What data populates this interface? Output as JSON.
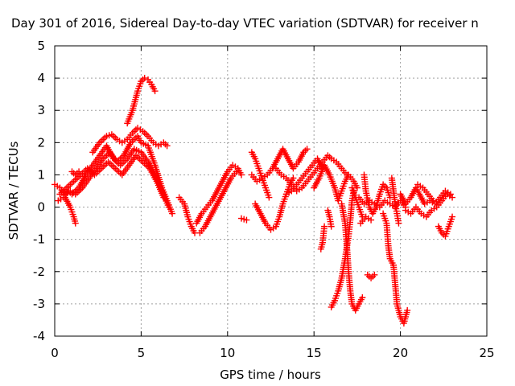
{
  "chart_data": {
    "type": "scatter",
    "title": "Day 301 of 2016, Sidereal Day-to-day VTEC variation (SDTVAR) for receiver n",
    "xlabel": "GPS time / hours",
    "ylabel": "SDTVAR / TECUs",
    "xlim": [
      0,
      25
    ],
    "ylim": [
      -4,
      5
    ],
    "x_ticks": [
      "0",
      "5",
      "10",
      "15",
      "20",
      "25"
    ],
    "y_ticks": [
      "-4",
      "-3",
      "-2",
      "-1",
      "0",
      "1",
      "2",
      "3",
      "4",
      "5"
    ],
    "x_tick_values": [
      0,
      5,
      10,
      15,
      20,
      25
    ],
    "y_tick_values": [
      -4,
      -3,
      -2,
      -1,
      0,
      1,
      2,
      3,
      4,
      5
    ],
    "grid": true,
    "marker": "+",
    "series": [
      {
        "color": "#ff0000",
        "segments": [
          [
            [
              0.0,
              0.7
            ],
            [
              0.3,
              0.6
            ],
            [
              0.6,
              0.4
            ],
            [
              0.9,
              0.5
            ],
            [
              1.2,
              0.4
            ],
            [
              1.6,
              0.6
            ],
            [
              2.0,
              0.9
            ],
            [
              2.4,
              1.2
            ],
            [
              2.8,
              1.5
            ],
            [
              3.2,
              1.7
            ],
            [
              3.6,
              1.4
            ],
            [
              4.0,
              1.6
            ],
            [
              4.4,
              2.0
            ],
            [
              4.8,
              2.2
            ],
            [
              5.0,
              2.0
            ],
            [
              5.4,
              1.9
            ],
            [
              5.8,
              1.3
            ],
            [
              6.2,
              0.6
            ],
            [
              6.5,
              0.2
            ],
            [
              6.8,
              -0.2
            ]
          ],
          [
            [
              0.2,
              0.2
            ],
            [
              0.5,
              0.3
            ],
            [
              0.8,
              0.5
            ],
            [
              1.0,
              0.4
            ],
            [
              1.4,
              0.6
            ],
            [
              1.8,
              1.0
            ],
            [
              2.2,
              1.3
            ],
            [
              2.6,
              1.6
            ],
            [
              3.0,
              1.9
            ],
            [
              3.4,
              1.5
            ],
            [
              3.8,
              1.3
            ],
            [
              4.2,
              1.5
            ],
            [
              4.6,
              1.8
            ],
            [
              5.0,
              1.7
            ],
            [
              5.4,
              1.4
            ],
            [
              5.8,
              1.0
            ],
            [
              6.2,
              0.5
            ],
            [
              6.6,
              0.0
            ]
          ],
          [
            [
              0.3,
              0.4
            ],
            [
              0.7,
              0.6
            ],
            [
              1.1,
              0.8
            ],
            [
              1.5,
              1.0
            ],
            [
              1.9,
              1.2
            ],
            [
              2.3,
              1.0
            ],
            [
              2.7,
              1.2
            ],
            [
              3.1,
              1.4
            ],
            [
              3.5,
              1.2
            ],
            [
              3.9,
              1.0
            ],
            [
              4.3,
              1.3
            ],
            [
              4.7,
              1.6
            ],
            [
              5.1,
              1.4
            ],
            [
              5.5,
              1.2
            ],
            [
              5.9,
              0.8
            ],
            [
              6.3,
              0.3
            ]
          ],
          [
            [
              1.0,
              1.1
            ],
            [
              1.2,
              1.0
            ],
            [
              1.4,
              1.1
            ]
          ],
          [
            [
              0.6,
              0.3
            ],
            [
              0.9,
              0.0
            ],
            [
              1.1,
              -0.3
            ],
            [
              1.2,
              -0.5
            ]
          ],
          [
            [
              4.2,
              2.6
            ],
            [
              4.5,
              3.0
            ],
            [
              4.8,
              3.6
            ],
            [
              5.0,
              3.9
            ],
            [
              5.2,
              4.0
            ],
            [
              5.4,
              3.95
            ],
            [
              5.6,
              3.8
            ],
            [
              5.8,
              3.6
            ]
          ],
          [
            [
              2.2,
              1.7
            ],
            [
              2.6,
              2.0
            ],
            [
              3.0,
              2.2
            ],
            [
              3.3,
              2.25
            ],
            [
              3.6,
              2.1
            ],
            [
              3.9,
              2.0
            ],
            [
              4.2,
              2.1
            ],
            [
              4.5,
              2.3
            ],
            [
              4.8,
              2.45
            ],
            [
              5.1,
              2.35
            ],
            [
              5.4,
              2.2
            ],
            [
              5.7,
              2.0
            ],
            [
              6.0,
              1.9
            ],
            [
              6.3,
              2.0
            ],
            [
              6.5,
              1.9
            ]
          ],
          [
            [
              7.2,
              0.3
            ],
            [
              7.5,
              0.1
            ],
            [
              7.7,
              -0.3
            ],
            [
              7.9,
              -0.6
            ],
            [
              8.1,
              -0.8
            ]
          ],
          [
            [
              8.2,
              -0.5
            ],
            [
              8.5,
              -0.2
            ],
            [
              8.8,
              0.0
            ],
            [
              9.1,
              0.2
            ],
            [
              9.4,
              0.5
            ],
            [
              9.7,
              0.8
            ],
            [
              10.0,
              1.1
            ],
            [
              10.3,
              1.3
            ],
            [
              10.6,
              1.2
            ],
            [
              10.8,
              1.0
            ]
          ],
          [
            [
              8.4,
              -0.8
            ],
            [
              8.7,
              -0.6
            ],
            [
              9.0,
              -0.3
            ],
            [
              9.3,
              0.0
            ],
            [
              9.6,
              0.3
            ],
            [
              9.9,
              0.6
            ],
            [
              10.2,
              0.9
            ],
            [
              10.5,
              1.1
            ]
          ],
          [
            [
              10.8,
              -0.35
            ],
            [
              11.1,
              -0.4
            ]
          ],
          [
            [
              11.4,
              1.7
            ],
            [
              11.6,
              1.5
            ],
            [
              11.8,
              1.2
            ],
            [
              12.0,
              0.9
            ],
            [
              12.2,
              0.6
            ],
            [
              12.4,
              0.3
            ]
          ],
          [
            [
              11.6,
              0.1
            ],
            [
              11.9,
              -0.2
            ],
            [
              12.2,
              -0.5
            ],
            [
              12.5,
              -0.7
            ],
            [
              12.8,
              -0.6
            ],
            [
              13.0,
              -0.3
            ],
            [
              13.2,
              0.1
            ],
            [
              13.4,
              0.4
            ],
            [
              13.6,
              0.7
            ],
            [
              13.8,
              0.9
            ]
          ],
          [
            [
              11.4,
              1.0
            ],
            [
              11.7,
              0.8
            ],
            [
              12.0,
              0.9
            ],
            [
              12.3,
              1.0
            ],
            [
              12.6,
              1.2
            ],
            [
              12.9,
              1.5
            ],
            [
              13.2,
              1.8
            ],
            [
              13.5,
              1.5
            ],
            [
              13.8,
              1.2
            ],
            [
              14.1,
              1.4
            ],
            [
              14.4,
              1.7
            ],
            [
              14.6,
              1.8
            ]
          ],
          [
            [
              12.8,
              1.2
            ],
            [
              13.1,
              1.0
            ],
            [
              13.4,
              0.9
            ],
            [
              13.7,
              0.7
            ],
            [
              14.0,
              0.5
            ],
            [
              14.3,
              0.6
            ],
            [
              14.6,
              0.8
            ],
            [
              14.9,
              1.0
            ],
            [
              15.2,
              1.2
            ],
            [
              15.5,
              1.4
            ],
            [
              15.8,
              1.6
            ],
            [
              16.0,
              1.5
            ],
            [
              16.3,
              1.4
            ],
            [
              16.6,
              1.2
            ],
            [
              16.9,
              1.0
            ]
          ],
          [
            [
              13.4,
              0.4
            ],
            [
              13.7,
              0.5
            ],
            [
              14.0,
              0.7
            ],
            [
              14.3,
              0.9
            ],
            [
              14.6,
              1.1
            ],
            [
              14.9,
              1.3
            ],
            [
              15.2,
              1.5
            ],
            [
              15.5,
              1.2
            ]
          ],
          [
            [
              15.0,
              0.6
            ],
            [
              15.3,
              0.9
            ],
            [
              15.6,
              1.3
            ],
            [
              15.9,
              1.0
            ],
            [
              16.2,
              0.6
            ],
            [
              16.4,
              0.2
            ],
            [
              16.6,
              0.5
            ],
            [
              16.8,
              0.8
            ],
            [
              17.0,
              1.0
            ],
            [
              17.3,
              0.8
            ],
            [
              17.5,
              0.6
            ]
          ],
          [
            [
              15.4,
              -1.3
            ],
            [
              15.5,
              -1.1
            ],
            [
              15.6,
              -0.6
            ]
          ],
          [
            [
              15.8,
              -0.1
            ],
            [
              15.9,
              -0.3
            ],
            [
              16.0,
              -0.6
            ]
          ],
          [
            [
              16.0,
              -3.1
            ],
            [
              16.2,
              -2.9
            ],
            [
              16.4,
              -2.6
            ],
            [
              16.6,
              -2.2
            ],
            [
              16.8,
              -1.6
            ],
            [
              17.0,
              -0.9
            ],
            [
              17.1,
              -0.4
            ],
            [
              17.2,
              0.2
            ],
            [
              17.3,
              0.5
            ]
          ],
          [
            [
              16.6,
              0.1
            ],
            [
              16.8,
              -0.5
            ],
            [
              16.9,
              -1.2
            ],
            [
              17.0,
              -2.0
            ],
            [
              17.1,
              -2.6
            ],
            [
              17.2,
              -3.0
            ],
            [
              17.4,
              -3.2
            ],
            [
              17.6,
              -3.0
            ],
            [
              17.8,
              -2.8
            ]
          ],
          [
            [
              17.2,
              0.6
            ],
            [
              17.4,
              0.3
            ],
            [
              17.6,
              0.0
            ],
            [
              17.8,
              -0.3
            ]
          ],
          [
            [
              17.9,
              1.0
            ],
            [
              18.0,
              0.5
            ],
            [
              18.2,
              0.0
            ],
            [
              18.4,
              -0.2
            ],
            [
              18.6,
              0.0
            ],
            [
              18.8,
              0.4
            ],
            [
              19.0,
              0.7
            ],
            [
              19.2,
              0.6
            ],
            [
              19.4,
              0.3
            ]
          ],
          [
            [
              17.6,
              0.3
            ],
            [
              17.9,
              0.1
            ],
            [
              18.2,
              0.2
            ],
            [
              18.5,
              0.1
            ],
            [
              18.8,
              0.0
            ],
            [
              19.1,
              0.2
            ],
            [
              19.4,
              0.1
            ],
            [
              19.7,
              0.0
            ],
            [
              20.0,
              0.2
            ],
            [
              20.3,
              0.0
            ]
          ],
          [
            [
              17.7,
              -0.5
            ],
            [
              18.0,
              -0.3
            ],
            [
              18.3,
              -0.4
            ]
          ],
          [
            [
              18.1,
              -2.1
            ],
            [
              18.3,
              -2.2
            ],
            [
              18.5,
              -2.1
            ]
          ],
          [
            [
              19.0,
              -0.2
            ],
            [
              19.2,
              -0.5
            ],
            [
              19.3,
              -1.2
            ],
            [
              19.4,
              -1.6
            ],
            [
              19.6,
              -1.8
            ],
            [
              19.7,
              -2.4
            ],
            [
              19.8,
              -3.0
            ],
            [
              20.0,
              -3.4
            ],
            [
              20.2,
              -3.6
            ],
            [
              20.4,
              -3.2
            ]
          ],
          [
            [
              19.5,
              0.9
            ],
            [
              19.6,
              0.5
            ],
            [
              19.7,
              0.1
            ],
            [
              19.8,
              -0.2
            ],
            [
              19.9,
              -0.5
            ]
          ],
          [
            [
              20.0,
              0.4
            ],
            [
              20.3,
              0.1
            ],
            [
              20.6,
              0.3
            ],
            [
              20.9,
              0.6
            ],
            [
              21.1,
              0.4
            ],
            [
              21.4,
              0.1
            ],
            [
              21.7,
              0.2
            ],
            [
              22.0,
              0.1
            ],
            [
              22.3,
              0.3
            ],
            [
              22.6,
              0.5
            ],
            [
              22.9,
              0.4
            ]
          ],
          [
            [
              20.3,
              -0.1
            ],
            [
              20.6,
              -0.2
            ],
            [
              20.9,
              0.0
            ],
            [
              21.2,
              -0.2
            ],
            [
              21.5,
              -0.3
            ],
            [
              21.8,
              -0.1
            ],
            [
              22.1,
              0.0
            ],
            [
              22.4,
              0.2
            ],
            [
              22.7,
              0.4
            ],
            [
              23.0,
              0.3
            ]
          ],
          [
            [
              21.0,
              0.7
            ],
            [
              21.3,
              0.6
            ],
            [
              21.6,
              0.4
            ],
            [
              21.9,
              0.2
            ]
          ],
          [
            [
              22.2,
              -0.6
            ],
            [
              22.4,
              -0.8
            ],
            [
              22.6,
              -0.9
            ],
            [
              22.8,
              -0.6
            ],
            [
              23.0,
              -0.3
            ]
          ]
        ]
      }
    ]
  }
}
